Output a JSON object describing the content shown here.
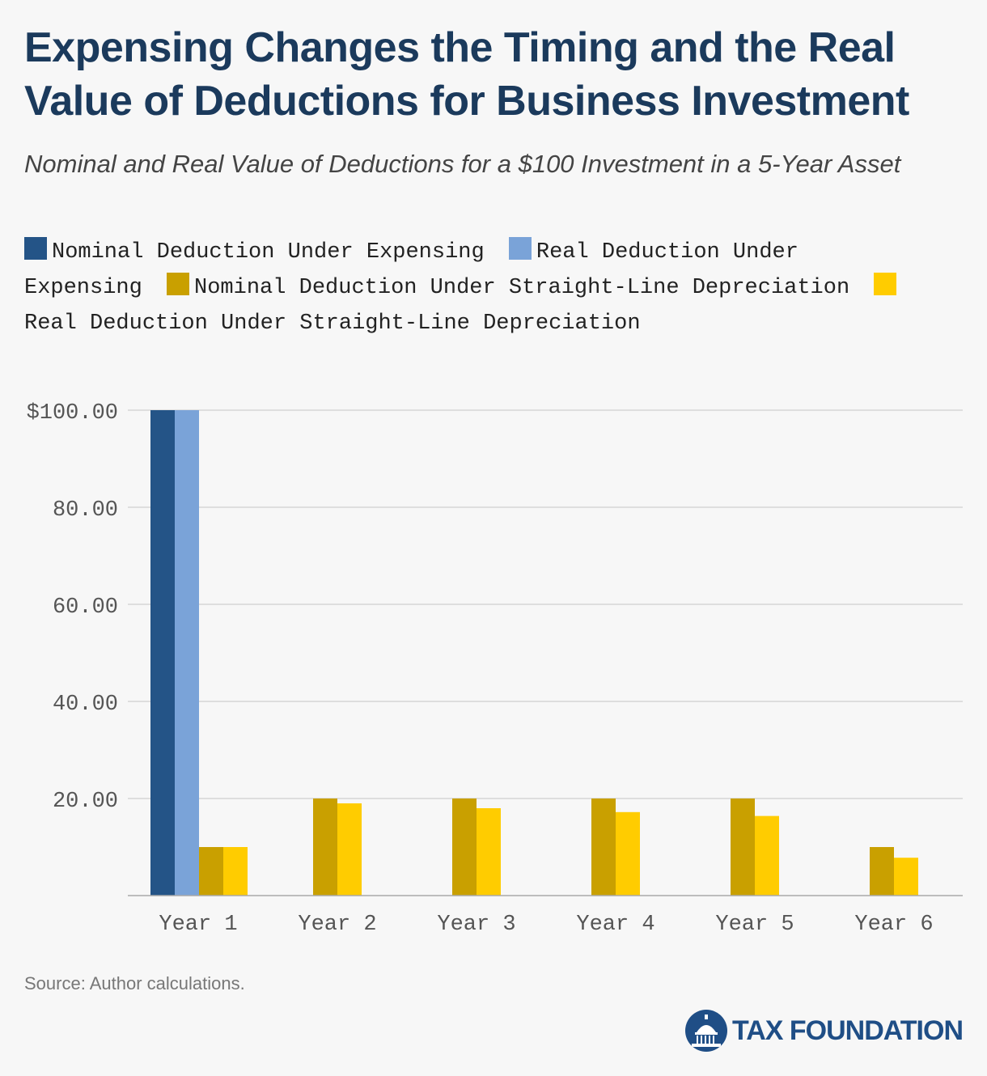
{
  "title": "Expensing Changes the Timing and the Real Value of Deductions for Business Investment",
  "subtitle": "Nominal and Real Value of Deductions for a $100 Investment in a 5-Year Asset",
  "source": "Source: Author calculations.",
  "brand": "TAX FOUNDATION",
  "legend": [
    {
      "label": "Nominal Deduction Under Expensing",
      "color": "#245487"
    },
    {
      "label": "Real Deduction Under Expensing",
      "color": "#7aa3d8"
    },
    {
      "label": "Nominal Deduction Under Straight-Line Depreciation",
      "color": "#c9a000"
    },
    {
      "label": "Real Deduction Under Straight-Line Depreciation",
      "color": "#ffcc00"
    }
  ],
  "chart_data": {
    "type": "bar",
    "categories": [
      "Year 1",
      "Year 2",
      "Year 3",
      "Year 4",
      "Year 5",
      "Year 6"
    ],
    "series": [
      {
        "name": "Nominal Deduction Under Expensing",
        "color": "#245487",
        "values": [
          100,
          0,
          0,
          0,
          0,
          0
        ]
      },
      {
        "name": "Real Deduction Under Expensing",
        "color": "#7aa3d8",
        "values": [
          100,
          0,
          0,
          0,
          0,
          0
        ]
      },
      {
        "name": "Nominal Deduction Under Straight-Line Depreciation",
        "color": "#c9a000",
        "values": [
          10,
          20,
          20,
          20,
          20,
          10
        ]
      },
      {
        "name": "Real Deduction Under Straight-Line Depreciation",
        "color": "#ffcc00",
        "values": [
          10,
          19,
          18,
          17.2,
          16.4,
          7.8
        ]
      }
    ],
    "ylim": [
      0,
      100
    ],
    "yticks": [
      20,
      40,
      60,
      80,
      100
    ],
    "ytick_labels": [
      "20.00",
      "40.00",
      "60.00",
      "80.00",
      "$100.00"
    ],
    "xlabel": "",
    "ylabel": "",
    "grid": true
  }
}
